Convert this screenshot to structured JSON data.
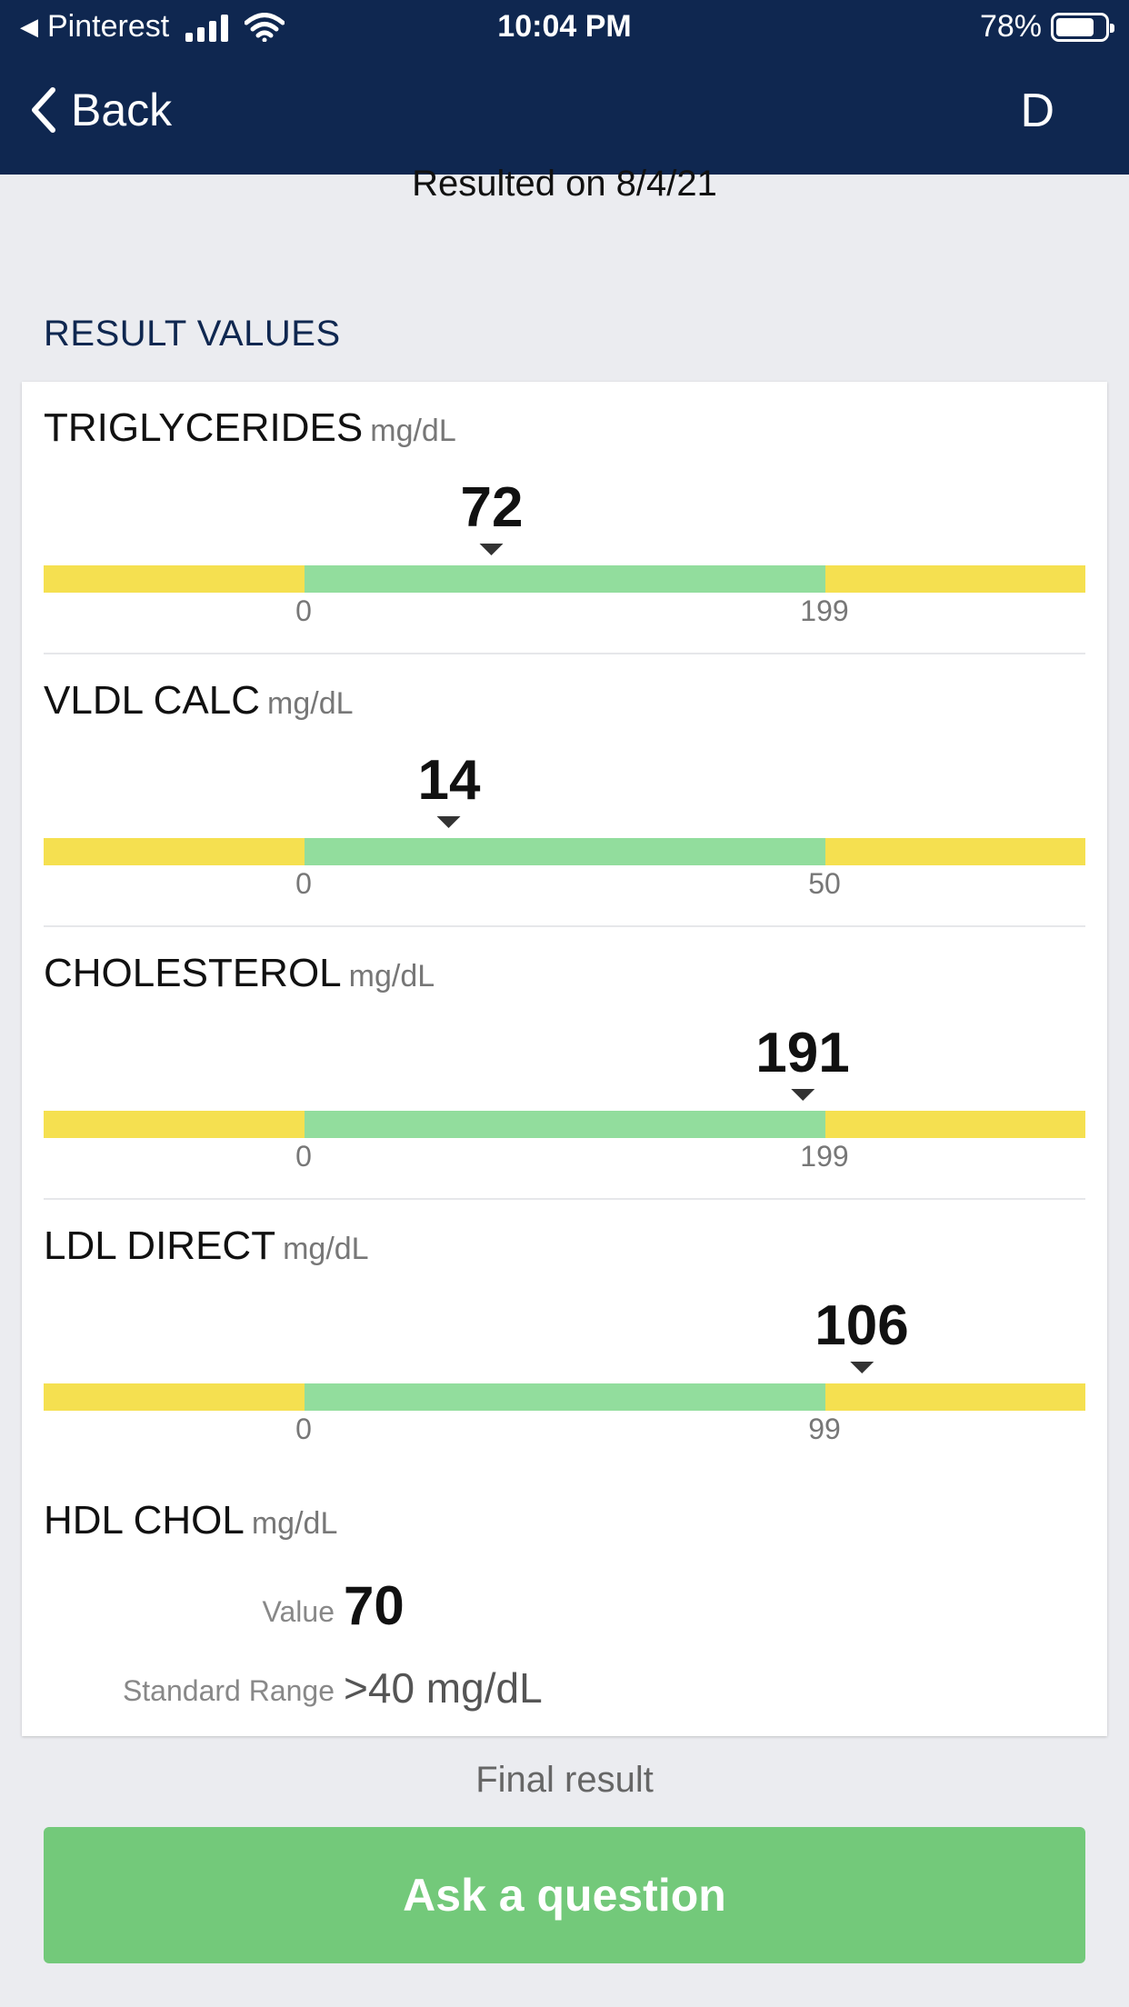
{
  "status_bar": {
    "back_app": "Pinterest",
    "time": "10:04 PM",
    "battery": "78%",
    "battery_level": 0.78
  },
  "nav": {
    "back_label": "Back",
    "avatar_initial": "D"
  },
  "resulted_on": "Resulted on 8/4/21",
  "section_title": "RESULT VALUES",
  "results": [
    {
      "name": "TRIGLYCERIDES",
      "unit": "mg/dL",
      "value": "72",
      "low": "0",
      "high": "199"
    },
    {
      "name": "VLDL CALC",
      "unit": "mg/dL",
      "value": "14",
      "low": "0",
      "high": "50"
    },
    {
      "name": "CHOLESTEROL",
      "unit": "mg/dL",
      "value": "191",
      "low": "0",
      "high": "199"
    },
    {
      "name": "LDL DIRECT",
      "unit": "mg/dL",
      "value": "106",
      "low": "0",
      "high": "99"
    }
  ],
  "hdl": {
    "name": "HDL CHOL",
    "unit": "mg/dL",
    "value_label": "Value",
    "value": "70",
    "range_label": "Standard Range",
    "range": ">40 mg/dL"
  },
  "final_result": "Final result",
  "ask_button": "Ask a question",
  "colors": {
    "header": "#0f2750",
    "out_of_range": "#f5e050",
    "in_range": "#92dd9d",
    "button": "#73c97a"
  }
}
